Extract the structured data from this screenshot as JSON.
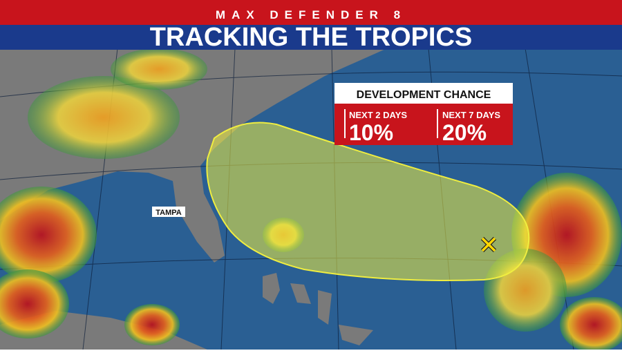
{
  "header": {
    "brand": "MAX DEFENDER 8",
    "title": "TRACKING THE TROPICS"
  },
  "panel": {
    "title": "DEVELOPMENT CHANCE",
    "items": [
      {
        "label": "NEXT 2 DAYS",
        "value": "10%"
      },
      {
        "label": "NEXT 7 DAYS",
        "value": "20%"
      }
    ]
  },
  "map": {
    "labels": [
      "TAMPA"
    ]
  }
}
